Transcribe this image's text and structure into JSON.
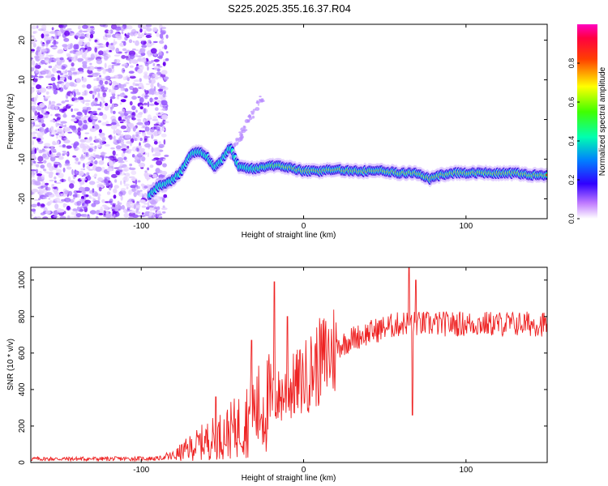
{
  "title": "S225.2025.355.16.37.R04",
  "chart_data": [
    {
      "type": "heatmap",
      "name": "spectrogram",
      "xlabel": "Height of straight line (km)",
      "ylabel": "Frequency (Hz)",
      "xlim": [
        -168,
        150
      ],
      "ylim": [
        -25,
        24
      ],
      "xticks": [
        -100,
        0,
        100
      ],
      "xtick_labels": [
        "-100",
        "0",
        "100"
      ],
      "yticks": [
        20,
        10,
        0,
        -10,
        -20
      ],
      "ytick_labels": [
        "20",
        "10",
        "0",
        "-10",
        "-20"
      ],
      "ridge": {
        "x": [
          -95,
          -90,
          -85,
          -80,
          -75,
          -70,
          -65,
          -60,
          -55,
          -50,
          -45,
          -40,
          -30,
          -20,
          -10,
          0,
          10,
          20,
          30,
          40,
          50,
          60,
          70,
          78,
          85,
          90,
          100,
          110,
          120,
          130,
          140,
          150
        ],
        "y": [
          -19,
          -17,
          -16,
          -15,
          -13,
          -9,
          -8,
          -9,
          -12,
          -10,
          -7,
          -12,
          -12.5,
          -11.5,
          -12,
          -13,
          -13,
          -12.5,
          -13,
          -13,
          -13,
          -13.5,
          -13.5,
          -15,
          -14,
          -13.5,
          -13.5,
          -13.5,
          -13.5,
          -13.5,
          -14,
          -14
        ]
      },
      "colorbar": {
        "label": "Normalized spectral amplitude",
        "ticks": [
          0.0,
          0.2,
          0.4,
          0.6,
          0.8
        ],
        "tick_labels": [
          "0.0",
          "0.2",
          "0.4",
          "0.6",
          "0.8"
        ],
        "range": [
          0,
          1
        ],
        "colors": [
          "#ffffff",
          "#7b00ff",
          "#0000ff",
          "#00ffff",
          "#00ff00",
          "#ffff00",
          "#ff0000",
          "#ff00aa"
        ]
      }
    },
    {
      "type": "line",
      "name": "snr",
      "xlabel": "Height of straight line (km)",
      "ylabel": "SNR (10 * v/v)",
      "xlim": [
        -168,
        150
      ],
      "ylim": [
        0,
        1070
      ],
      "xticks": [
        -100,
        0,
        100
      ],
      "xtick_labels": [
        "-100",
        "0",
        "100"
      ],
      "yticks": [
        0,
        200,
        400,
        600,
        800,
        1000
      ],
      "ytick_labels": [
        "0",
        "200",
        "400",
        "600",
        "800",
        "1000"
      ],
      "color": "#ee2222",
      "trend": {
        "x": [
          -168,
          -120,
          -90,
          -80,
          -70,
          -60,
          -50,
          -40,
          -30,
          -20,
          -10,
          0,
          10,
          20,
          30,
          40,
          50,
          60,
          65,
          70,
          80,
          100,
          120,
          150
        ],
        "y": [
          20,
          20,
          22,
          35,
          80,
          120,
          150,
          200,
          280,
          330,
          390,
          460,
          550,
          630,
          680,
          710,
          740,
          760,
          770,
          760,
          760,
          760,
          760,
          760
        ]
      },
      "spikes": [
        {
          "x": -54,
          "y": 360
        },
        {
          "x": -32,
          "y": 670
        },
        {
          "x": -18,
          "y": 990
        },
        {
          "x": -10,
          "y": 800
        },
        {
          "x": 65,
          "y": 1070
        },
        {
          "x": 67,
          "y": 260
        },
        {
          "x": 69,
          "y": 1000
        }
      ]
    }
  ]
}
